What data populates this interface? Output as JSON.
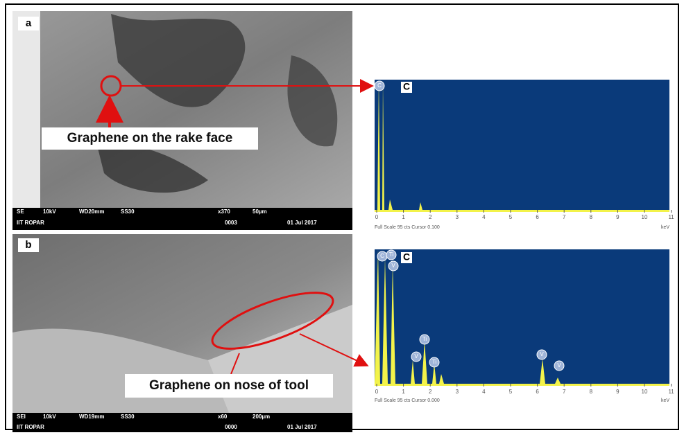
{
  "panels": [
    {
      "label": "a",
      "annotation": "Graphene on the rake face",
      "info_bar": {
        "line1": [
          "SE",
          "10kV",
          "WD20mm",
          "SS30",
          "x370",
          "50µm"
        ],
        "line2": [
          "IIT ROPAR",
          "0003",
          "01 Jul 2017"
        ]
      },
      "spectrum": {
        "element": "C",
        "peak_labels": [
          "C"
        ],
        "ticks": [
          0,
          1,
          2,
          3,
          4,
          5,
          6,
          7,
          8,
          9,
          10,
          11
        ],
        "footer": "Full Scale 95 cts Cursor 0.100",
        "unit": "keV"
      }
    },
    {
      "label": "b",
      "annotation": "Graphene on nose of tool",
      "info_bar": {
        "line1": [
          "SEI",
          "10kV",
          "WD19mm",
          "SS30",
          "x60",
          "200µm"
        ],
        "line2": [
          "IIT ROPAR",
          "0000",
          "01 Jul 2017"
        ]
      },
      "spectrum": {
        "element": "C",
        "peak_labels": [
          "C",
          "Ti",
          "V",
          "Ti",
          "V",
          "Ti",
          "V",
          "V"
        ],
        "ticks": [
          0,
          1,
          2,
          3,
          4,
          5,
          6,
          7,
          8,
          9,
          10,
          11
        ],
        "footer": "Full Scale 95 cts Cursor 0.000",
        "unit": "keV"
      }
    }
  ]
}
